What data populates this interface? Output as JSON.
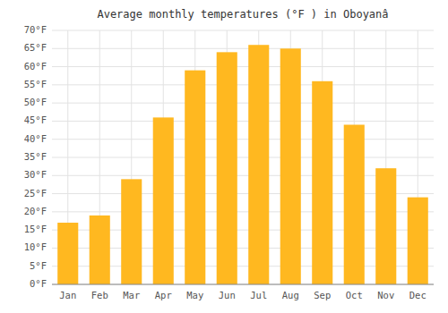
{
  "chart_data": {
    "type": "bar",
    "title": "Average monthly temperatures (°F ) in Oboyanâ",
    "categories": [
      "Jan",
      "Feb",
      "Mar",
      "Apr",
      "May",
      "Jun",
      "Jul",
      "Aug",
      "Sep",
      "Oct",
      "Nov",
      "Dec"
    ],
    "values": [
      17,
      19,
      29,
      46,
      59,
      64,
      66,
      65,
      56,
      44,
      32,
      24
    ],
    "color": "#FFB820",
    "ylim": [
      0,
      70
    ],
    "yticks": [
      {
        "value": 0,
        "label": "0°F"
      },
      {
        "value": 5,
        "label": "5°F"
      },
      {
        "value": 10,
        "label": "10°F"
      },
      {
        "value": 15,
        "label": "15°F"
      },
      {
        "value": 20,
        "label": "20°F"
      },
      {
        "value": 25,
        "label": "25°F"
      },
      {
        "value": 30,
        "label": "30°F"
      },
      {
        "value": 35,
        "label": "35°F"
      },
      {
        "value": 40,
        "label": "40°F"
      },
      {
        "value": 45,
        "label": "45°F"
      },
      {
        "value": 50,
        "label": "50°F"
      },
      {
        "value": 55,
        "label": "55°F"
      },
      {
        "value": 60,
        "label": "60°F"
      },
      {
        "value": 65,
        "label": "65°F"
      },
      {
        "value": 70,
        "label": "70°F"
      }
    ],
    "grid": true
  }
}
